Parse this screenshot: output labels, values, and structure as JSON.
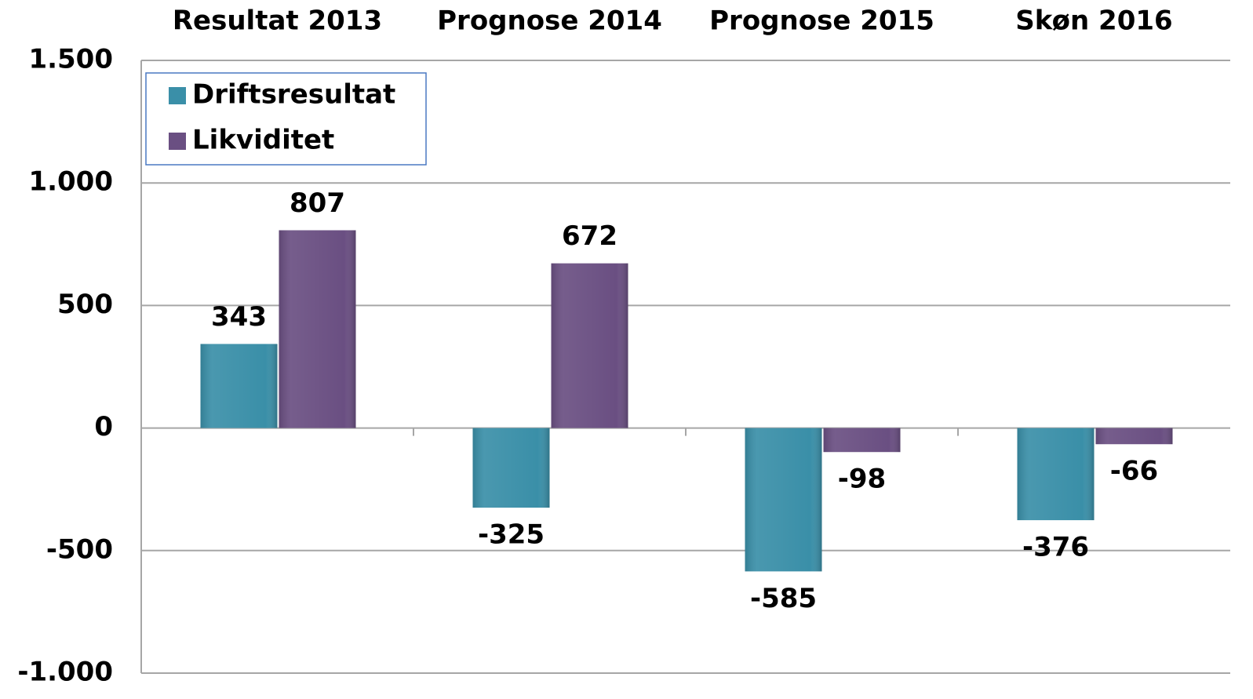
{
  "chart_data": {
    "type": "bar",
    "categories": [
      "Resultat 2013",
      "Prognose 2014",
      "Prognose 2015",
      "Skøn 2016"
    ],
    "series": [
      {
        "name": "Driftsresultat",
        "color": "#3a8fa8",
        "values": [
          343,
          -325,
          -585,
          -376
        ]
      },
      {
        "name": "Likviditet",
        "color": "#6a4f82",
        "values": [
          807,
          672,
          -98,
          -66
        ]
      }
    ],
    "ylim": [
      -1000,
      1500
    ],
    "yticks": [
      {
        "value": -1000,
        "label": "-1.000"
      },
      -500,
      0,
      500,
      {
        "value": 1000,
        "label": "1.000"
      },
      {
        "value": 1500,
        "label": "1.500"
      }
    ],
    "grid": true,
    "legend": "top-left"
  }
}
